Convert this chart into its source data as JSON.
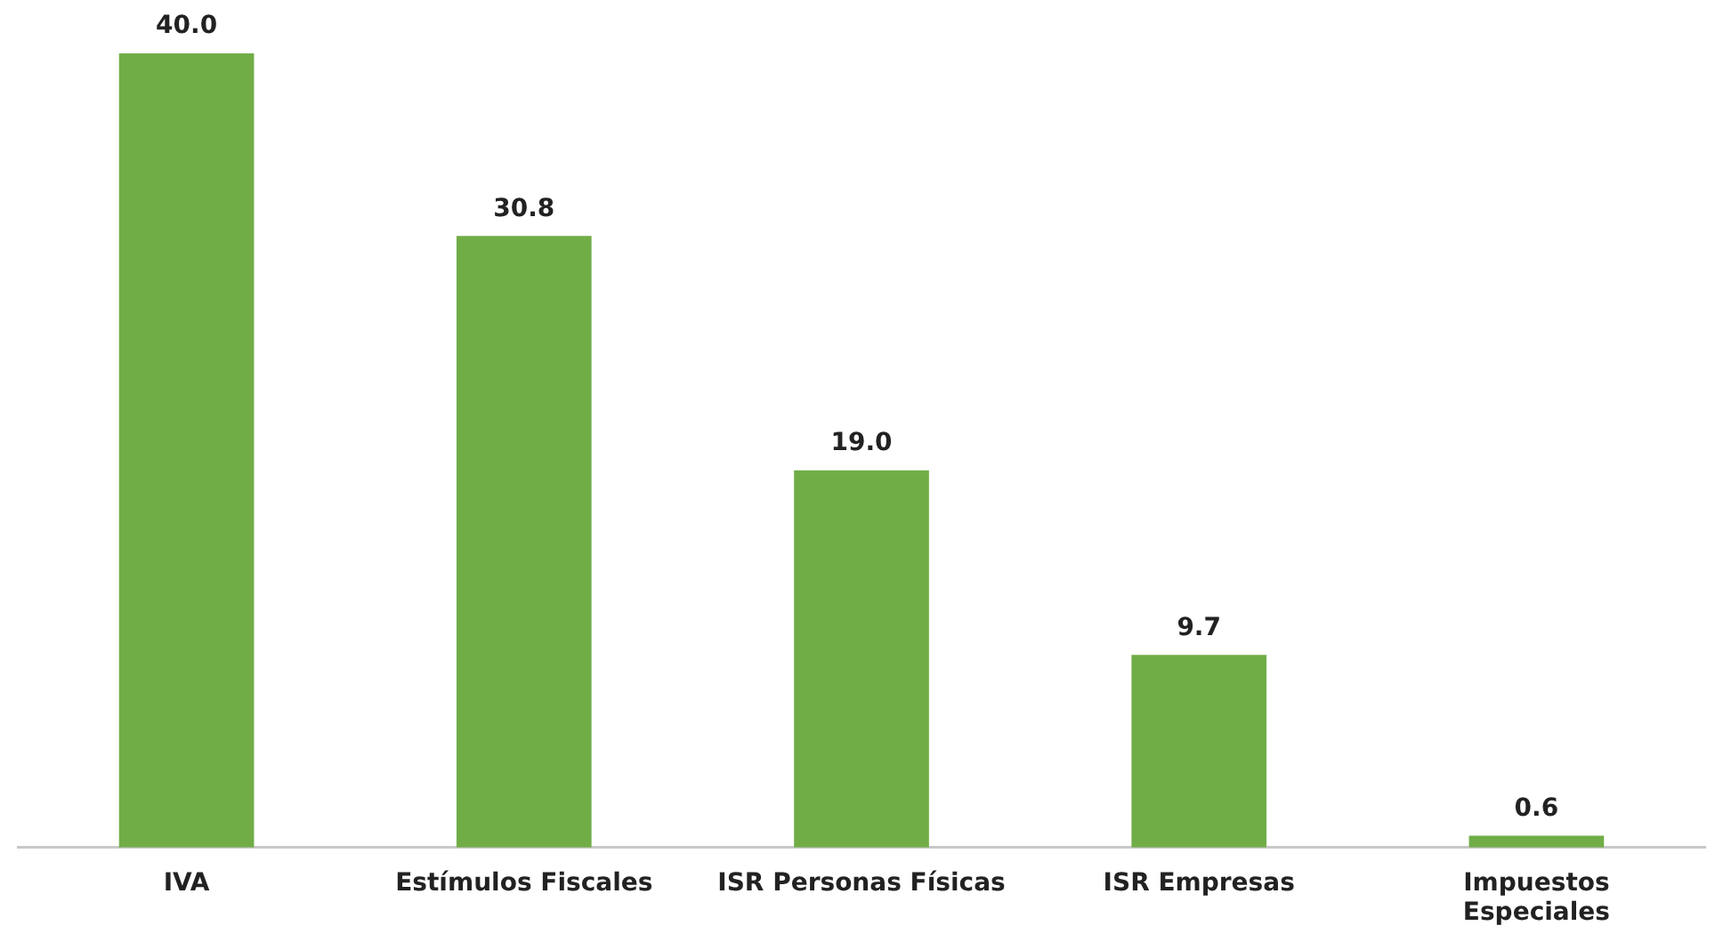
{
  "chart_data": {
    "type": "bar",
    "categories": [
      "IVA",
      "Estímulos Fiscales",
      "ISR Personas Físicas",
      "ISR Empresas",
      "Impuestos\nEspeciales"
    ],
    "values": [
      40.0,
      30.8,
      19.0,
      9.7,
      0.6
    ],
    "value_labels": [
      "40.0",
      "30.8",
      "19.0",
      "9.7",
      "0.6"
    ],
    "color": "#70ad47",
    "grid": false,
    "legend": false
  }
}
